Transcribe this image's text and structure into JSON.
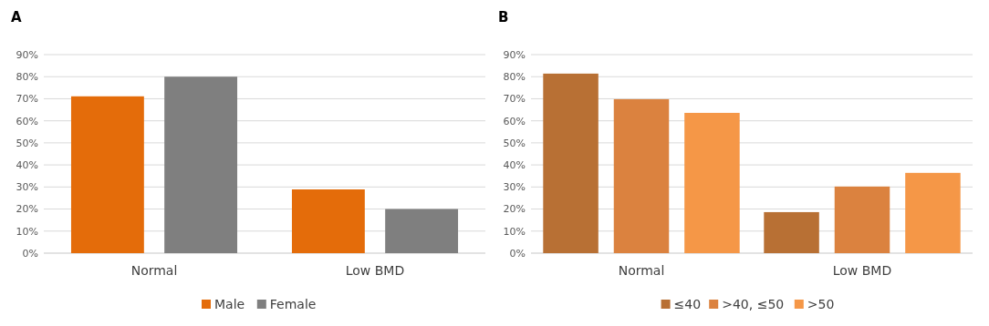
{
  "chart_data": [
    {
      "type": "bar",
      "title": "A",
      "categories": [
        "Normal",
        "Low BMD"
      ],
      "series": [
        {
          "name": "Male",
          "color": "#e46c0a",
          "values": [
            71.1,
            28.9
          ]
        },
        {
          "name": "Female",
          "color": "#7f7f7f",
          "values": [
            80,
            20
          ]
        }
      ],
      "ylim": [
        0,
        90
      ],
      "yticks": [
        {
          "value": 0,
          "label": "0%"
        },
        {
          "value": 10,
          "label": "10%"
        },
        {
          "value": 20,
          "label": "20%"
        },
        {
          "value": 30,
          "label": "30%"
        },
        {
          "value": 40,
          "label": "40%"
        },
        {
          "value": 50,
          "label": "50%"
        },
        {
          "value": 60,
          "label": "60%"
        },
        {
          "value": 70,
          "label": "70%"
        },
        {
          "value": 80,
          "label": "80%"
        },
        {
          "value": 90,
          "label": "90%"
        }
      ],
      "grid": "y",
      "legend": "bottom"
    },
    {
      "type": "bar",
      "title": "B",
      "categories": [
        "Normal",
        "Low BMD"
      ],
      "series": [
        {
          "name": "≤40",
          "color": "#b87034",
          "values": [
            81.4,
            18.6
          ]
        },
        {
          "name": ">40, ≤50",
          "color": "#db823f",
          "values": [
            69.8,
            30.2
          ]
        },
        {
          "name": ">50",
          "color": "#f59747",
          "values": [
            63.6,
            36.4
          ]
        }
      ],
      "ylim": [
        0,
        90
      ],
      "yticks": [
        {
          "value": 0,
          "label": "0%"
        },
        {
          "value": 10,
          "label": "10%"
        },
        {
          "value": 20,
          "label": "20%"
        },
        {
          "value": 30,
          "label": "30%"
        },
        {
          "value": 40,
          "label": "40%"
        },
        {
          "value": 50,
          "label": "50%"
        },
        {
          "value": 60,
          "label": "60%"
        },
        {
          "value": 70,
          "label": "70%"
        },
        {
          "value": 80,
          "label": "80%"
        },
        {
          "value": 90,
          "label": "90%"
        }
      ],
      "grid": "y",
      "legend": "bottom"
    }
  ]
}
